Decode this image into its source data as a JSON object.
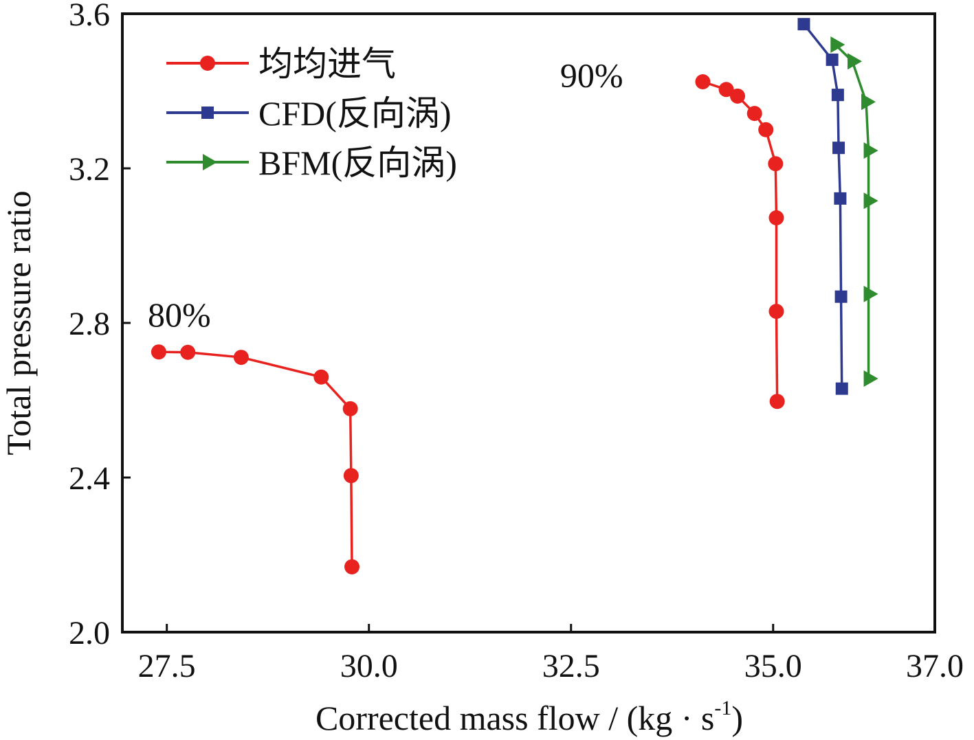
{
  "chart_data": {
    "type": "line",
    "title": "",
    "xlabel": "Corrected mass flow / (kg · s",
    "xlabel_sup": "-1",
    "xlabel_end": ")",
    "ylabel": "Total pressure ratio",
    "xlim": [
      26.95,
      37.0
    ],
    "ylim": [
      2.0,
      3.6
    ],
    "xticks": [
      27.5,
      30.0,
      32.5,
      35.0,
      37.0
    ],
    "xtick_labels": [
      "27.5",
      "30.0",
      "32.5",
      "35.0",
      "37.0"
    ],
    "yticks": [
      2.0,
      2.4,
      2.8,
      3.2,
      3.6
    ],
    "ytick_labels": [
      "2.0",
      "2.4",
      "2.8",
      "3.2",
      "3.6"
    ],
    "grid": false,
    "legend_position": "top-left",
    "annotations": [
      {
        "text": "80%",
        "x": 27.35,
        "y": 2.8
      },
      {
        "text": "90%",
        "x": 32.45,
        "y": 3.42
      }
    ],
    "series": [
      {
        "name": "均均进气",
        "color": "#e8231f",
        "marker": "circle",
        "group": "80%",
        "x": [
          27.4,
          27.76,
          28.42,
          29.41,
          29.77,
          29.78,
          29.79
        ],
        "y": [
          2.725,
          2.724,
          2.711,
          2.66,
          2.578,
          2.405,
          2.169
        ]
      },
      {
        "name": "均均进气",
        "color": "#e8231f",
        "marker": "circle",
        "group": "90%",
        "legend": false,
        "x": [
          34.13,
          34.42,
          34.56,
          34.77,
          34.91,
          35.03,
          35.04,
          35.04,
          35.05
        ],
        "y": [
          3.424,
          3.404,
          3.387,
          3.342,
          3.3,
          3.212,
          3.072,
          2.83,
          2.597
        ]
      },
      {
        "name": "CFD(反向涡)",
        "color": "#2e3a8f",
        "marker": "square",
        "group": "90%",
        "x": [
          35.38,
          35.73,
          35.8,
          35.81,
          35.83,
          35.84,
          35.85
        ],
        "y": [
          3.573,
          3.481,
          3.39,
          3.253,
          3.122,
          2.868,
          2.63
        ]
      },
      {
        "name": "BFM(反向涡)",
        "color": "#2e8b2e",
        "marker": "triangle-right",
        "group": "90%",
        "x": [
          35.77,
          35.98,
          36.15,
          36.18,
          36.18,
          36.18,
          36.18
        ],
        "y": [
          3.52,
          3.477,
          3.372,
          3.246,
          3.116,
          2.875,
          2.656
        ]
      }
    ]
  }
}
